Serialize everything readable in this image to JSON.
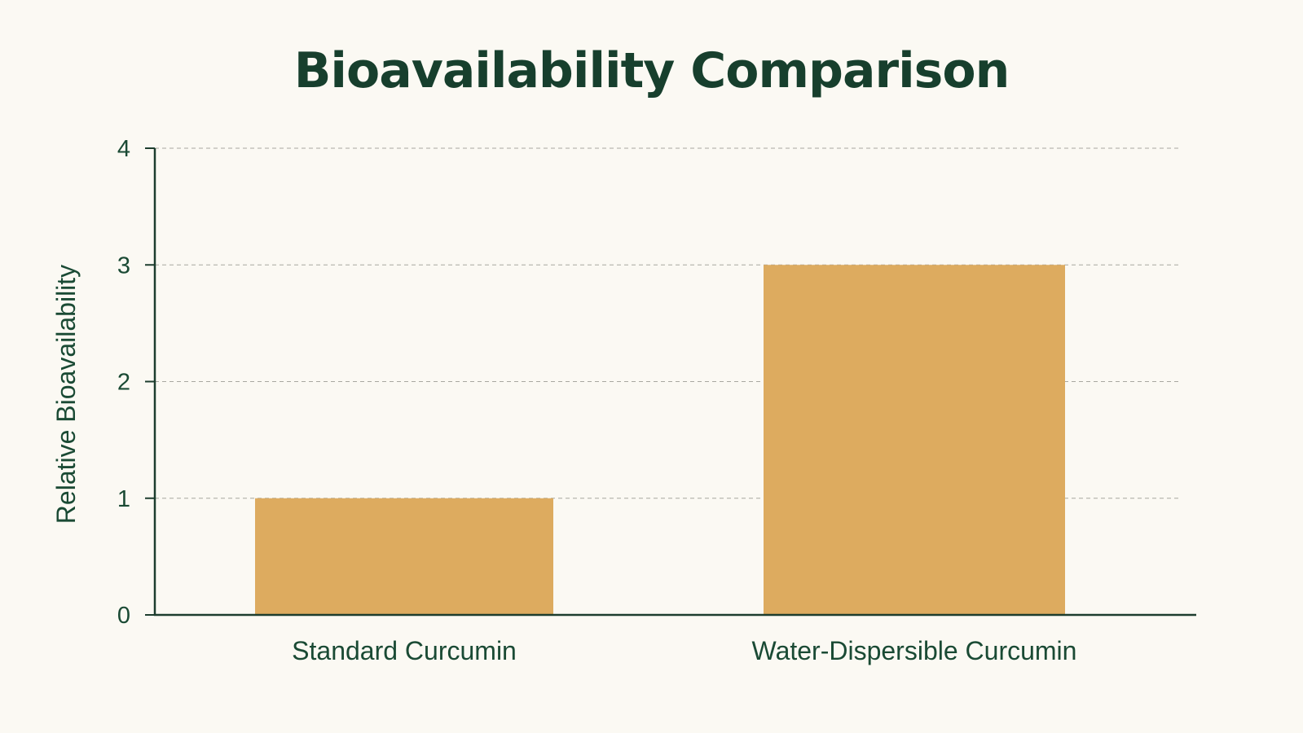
{
  "chart_data": {
    "type": "bar",
    "title": "Bioavailability Comparison",
    "xlabel": "",
    "ylabel": "Relative Bioavailability",
    "categories": [
      "Standard Curcumin",
      "Water-Dispersible Curcumin"
    ],
    "values": [
      1,
      3
    ],
    "ylim": [
      0,
      4
    ],
    "yticks": [
      0,
      1,
      2,
      3,
      4
    ],
    "grid": true,
    "legend": "none",
    "colors": {
      "bar": "#ddab5f",
      "axis": "#1d3d2e",
      "grid": "#a8a8a0",
      "text": "#1a4a34",
      "background": "#fbf9f3"
    }
  }
}
